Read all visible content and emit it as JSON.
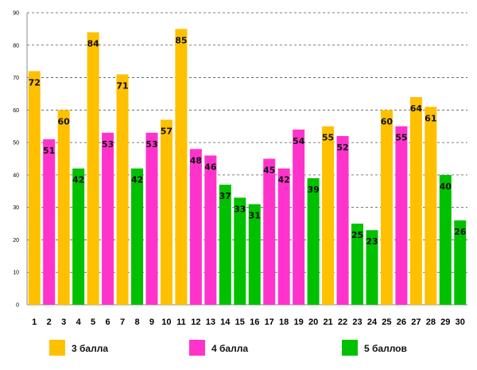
{
  "chart_data": {
    "type": "bar",
    "categories": [
      "1",
      "2",
      "3",
      "4",
      "5",
      "6",
      "7",
      "8",
      "9",
      "10",
      "11",
      "12",
      "13",
      "14",
      "15",
      "16",
      "17",
      "18",
      "19",
      "20",
      "21",
      "22",
      "23",
      "24",
      "25",
      "26",
      "27",
      "28",
      "29",
      "30"
    ],
    "values": [
      72,
      51,
      60,
      42,
      84,
      53,
      71,
      42,
      53,
      57,
      85,
      48,
      46,
      37,
      33,
      31,
      45,
      42,
      54,
      39,
      55,
      52,
      25,
      23,
      60,
      55,
      64,
      61,
      40,
      26
    ],
    "groups": [
      1,
      2,
      1,
      3,
      1,
      2,
      1,
      3,
      2,
      1,
      1,
      2,
      2,
      3,
      3,
      3,
      2,
      2,
      2,
      3,
      1,
      2,
      3,
      3,
      1,
      2,
      1,
      1,
      3,
      3
    ],
    "legend": [
      {
        "name": "3 балла",
        "color": "#FFC000"
      },
      {
        "name": "4 балла",
        "color": "#FF33CC"
      },
      {
        "name": "5 баллов",
        "color": "#00C000"
      }
    ],
    "yticks": [
      "0",
      "10",
      "20",
      "30",
      "40",
      "50",
      "60",
      "70",
      "80",
      "90"
    ],
    "ylim": [
      0,
      90
    ],
    "grid": true,
    "legend_position": "bottom"
  }
}
